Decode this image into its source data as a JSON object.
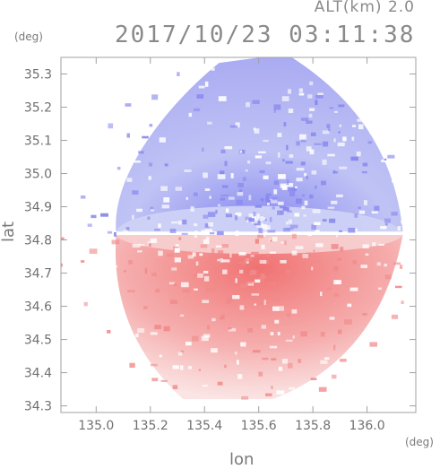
{
  "header": {
    "alt_label": "ALT(km) 2.0",
    "datetime": "2017/10/23 03:11:38"
  },
  "chart_data": {
    "type": "heatmap",
    "title": "2017/10/23 03:11:38",
    "xlabel": "lon",
    "ylabel": "lat",
    "x_unit": "(deg)",
    "y_unit": "(deg)",
    "xlim": [
      134.87,
      136.18
    ],
    "ylim": [
      34.28,
      35.35
    ],
    "x_ticks": [
      135.0,
      135.2,
      135.4,
      135.6,
      135.8,
      136.0
    ],
    "x_tick_labels": [
      "135.0",
      "135.2",
      "135.4",
      "135.6",
      "135.8",
      "136.0"
    ],
    "y_ticks": [
      34.3,
      34.4,
      34.5,
      34.6,
      34.7,
      34.8,
      34.9,
      35.0,
      35.1,
      35.2,
      35.3
    ],
    "y_tick_labels": [
      "34.3",
      "34.4",
      "34.5",
      "34.6",
      "34.7",
      "34.8",
      "34.9",
      "35.0",
      "35.1",
      "35.2",
      "35.3"
    ],
    "radar_center": {
      "lon": 135.52,
      "lat": 34.82
    },
    "colors": {
      "positive": "#f08a8a",
      "negative": "#8888ee",
      "weak_positive": "#f7cfcf",
      "weak_negative": "#cfd2f5",
      "axis": "#a0a0a0"
    }
  }
}
